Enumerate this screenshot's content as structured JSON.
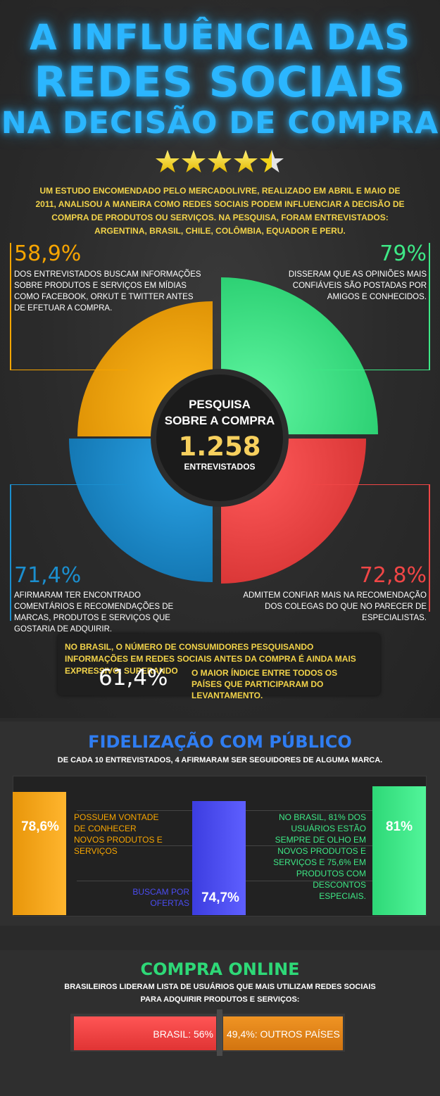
{
  "title": {
    "line1": "A INFLUÊNCIA DAS",
    "line2": "REDES SOCIAIS",
    "line3": "NA DECISÃO DE COMPRA"
  },
  "rating": {
    "value": 4.5,
    "max": 5
  },
  "intro": "UM ESTUDO ENCOMENDADO PELO MERCADOLIVRE, REALIZADO EM ABRIL E MAIO DE 2011, ANALISOU A MANEIRA COMO REDES SOCIAIS PODEM INFLUENCIAR A DECISÃO DE COMPRA DE PRODUTOS OU SERVIÇOS. NA PESQUISA, FORAM ENTREVISTADOS: ARGENTINA, BRASIL, CHILE, COLÔMBIA, EQUADOR E PERU.",
  "center": {
    "line1": "PESQUISA",
    "line2": "SOBRE A COMPRA",
    "number": "1.258",
    "caption": "ENTREVISTADOS"
  },
  "stats": {
    "orange": {
      "value": "58,9%",
      "text": "DOS ENTREVISTADOS BUSCAM INFORMAÇÕES SOBRE PRODUTOS E SERVIÇOS EM MÍDIAS COMO FACEBOOK, ORKUT E TWITTER ANTES DE EFETUAR A COMPRA.",
      "color": "#f7a500"
    },
    "green": {
      "value": "79%",
      "text": "DISSERAM QUE AS OPINIÕES MAIS CONFIÁVEIS SÃO POSTADAS POR AMIGOS E CONHECIDOS.",
      "color": "#3ee886"
    },
    "blue": {
      "value": "71,4%",
      "text": "AFIRMARAM TER ENCONTRADO COMENTÁRIOS E RECOMENDAÇÕES DE MARCAS, PRODUTOS E SERVIÇOS QUE GOSTARIA DE ADQUIRIR.",
      "color": "#1b8fcf"
    },
    "red": {
      "value": "72,8%",
      "text": "ADMITEM CONFIAR MAIS NA RECOMENDAÇÃO DOS COLEGAS DO QUE NO PARECER DE ESPECIALISTAS.",
      "color": "#f04646"
    }
  },
  "brasil_box": {
    "text1": "NO BRASIL, O NÚMERO DE CONSUMIDORES PESQUISANDO INFORMAÇÕES EM REDES SOCIAIS ANTES DA COMPRA É AINDA MAIS EXPRESSIVO, SUPERANDO",
    "value": "61,4%",
    "text2": "O MAIOR ÍNDICE ENTRE TODOS OS PAÍSES QUE PARTICIPARAM DO LEVANTAMENTO."
  },
  "fidelizacao": {
    "title": "FIDELIZAÇÃO COM PÚBLICO",
    "subtitle": "DE CADA 10 ENTREVISTADOS, 4 AFIRMARAM SER SEGUIDORES  DE ALGUMA MARCA.",
    "bar1": {
      "value": "78,6%",
      "label": "POSSUEM VONTADE DE CONHECER NOVOS PRODUTOS E SERVIÇOS",
      "color": "#f7a500"
    },
    "bar2": {
      "value": "74,7%",
      "label": "BUSCAM POR OFERTAS",
      "color": "#4b4cf0"
    },
    "bar3": {
      "value": "81%",
      "label": "NO BRASIL, 81% DOS USUÁRIOS ESTÃO SEMPRE DE OLHO EM NOVOS PRODUTOS E SERVIÇOS E 75,6% EM PRODUTOS COM DESCONTOS ESPECIAIS.",
      "color": "#3ee886"
    }
  },
  "compra_online": {
    "title": "COMPRA ONLINE",
    "subtitle1": "BRASILEIROS LIDERAM LISTA DE USUÁRIOS QUE MAIS UTILIZAM REDES SOCIAIS",
    "subtitle2": "PARA ADQUIRIR PRODUTOS E SERVIÇOS:",
    "brasil": "BRASIL: 56%",
    "outros": "49,4%: OUTROS PAÍSES"
  }
}
